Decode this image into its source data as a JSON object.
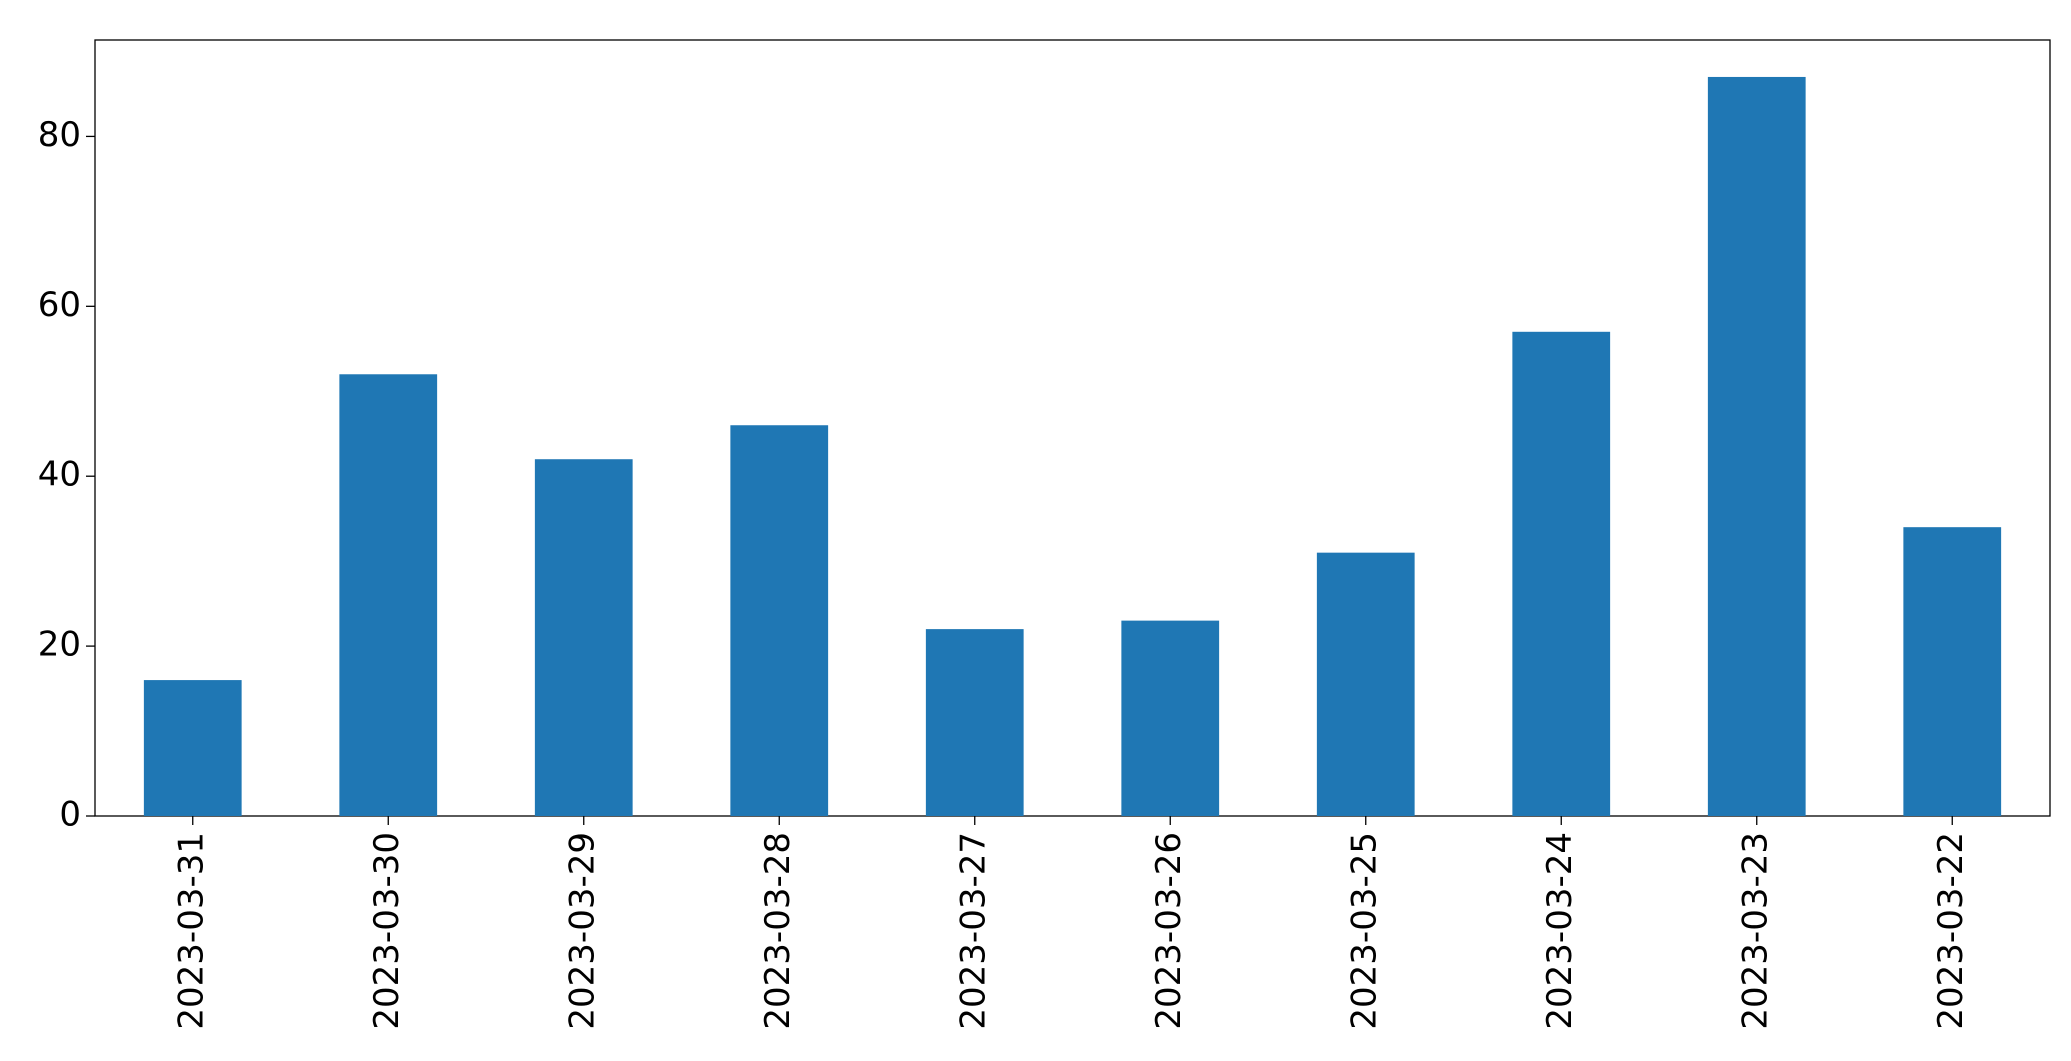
{
  "chart_data": {
    "type": "bar",
    "categories": [
      "2023-03-31",
      "2023-03-30",
      "2023-03-29",
      "2023-03-28",
      "2023-03-27",
      "2023-03-26",
      "2023-03-25",
      "2023-03-24",
      "2023-03-23",
      "2023-03-22"
    ],
    "values": [
      16,
      52,
      42,
      46,
      22,
      23,
      31,
      57,
      87,
      34
    ],
    "color": "#1f77b4",
    "ylim": [
      0,
      91.35
    ],
    "yticks": [
      0,
      20,
      40,
      60,
      80
    ],
    "grid": false
  }
}
